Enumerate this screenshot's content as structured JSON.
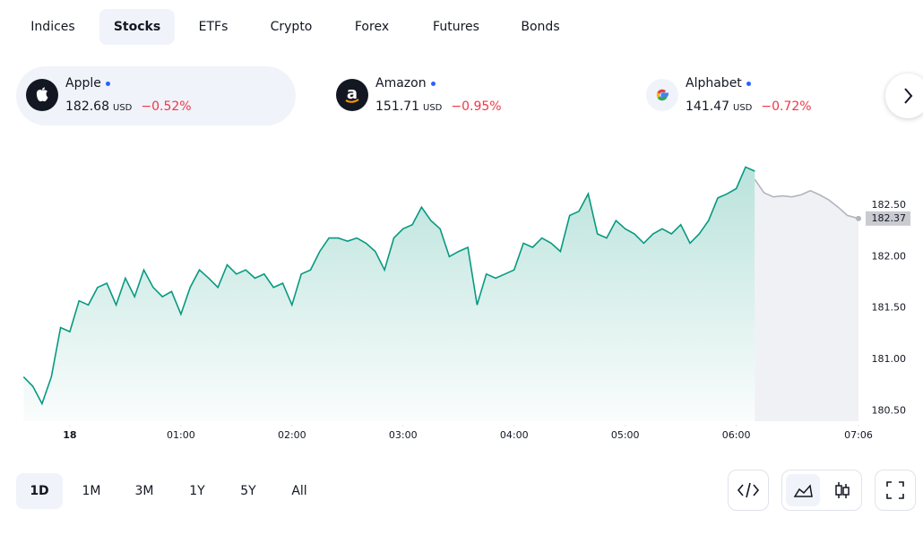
{
  "tabs": [
    "Indices",
    "Stocks",
    "ETFs",
    "Crypto",
    "Forex",
    "Futures",
    "Bonds"
  ],
  "active_tab": 1,
  "tickers": [
    {
      "name": "Apple",
      "price": 182.68,
      "currency": "USD",
      "change": "−0.52%"
    },
    {
      "name": "Amazon",
      "price": 151.71,
      "currency": "USD",
      "change": "−0.95%"
    },
    {
      "name": "Alphabet",
      "price": 141.47,
      "currency": "USD",
      "change": "−0.72%"
    }
  ],
  "active_ticker": 0,
  "chart_data": {
    "type": "line",
    "area": true,
    "xlim": [
      -29,
      426
    ],
    "ylim": [
      180.4,
      183.1
    ],
    "xticks": [
      {
        "value": 0,
        "label": "18"
      },
      {
        "value": 60,
        "label": "01:00"
      },
      {
        "value": 120,
        "label": "02:00"
      },
      {
        "value": 180,
        "label": "03:00"
      },
      {
        "value": 240,
        "label": "04:00"
      },
      {
        "value": 300,
        "label": "05:00"
      },
      {
        "value": 360,
        "label": "06:00"
      },
      {
        "value": 426,
        "label": "07:06"
      }
    ],
    "yticks": [
      {
        "value": 180.5,
        "label": "180.50"
      },
      {
        "value": 181,
        "label": "181.00"
      },
      {
        "value": 181.5,
        "label": "181.50"
      },
      {
        "value": 182,
        "label": "182.00"
      },
      {
        "value": 182.5,
        "label": "182.50"
      }
    ],
    "current_price": 182.37,
    "series": [
      {
        "color": "#089981",
        "x": [
          -25,
          -20,
          -15,
          -10,
          -5,
          0,
          5,
          10,
          15,
          20,
          25,
          30,
          35,
          40,
          45,
          50,
          55,
          60,
          65,
          70,
          75,
          80,
          85,
          90,
          95,
          100,
          105,
          110,
          115,
          120,
          125,
          130,
          135,
          140,
          145,
          150,
          155,
          160,
          165,
          170,
          175,
          180,
          185,
          190,
          195,
          200,
          205,
          210,
          215,
          220,
          225,
          230,
          235,
          240,
          245,
          250,
          255,
          260,
          265,
          270,
          275,
          280,
          285,
          290,
          295,
          300,
          305,
          310,
          315,
          320,
          325,
          330,
          335,
          340,
          345,
          350,
          355,
          360,
          365,
          370
        ],
        "values": [
          180.83,
          180.74,
          180.57,
          180.83,
          181.31,
          181.27,
          181.57,
          181.53,
          181.7,
          181.74,
          181.53,
          181.79,
          181.61,
          181.87,
          181.7,
          181.61,
          181.66,
          181.44,
          181.7,
          181.87,
          181.79,
          181.7,
          181.92,
          181.83,
          181.87,
          181.79,
          181.83,
          181.7,
          181.74,
          181.53,
          181.83,
          181.87,
          182.05,
          182.18,
          182.18,
          182.15,
          182.18,
          182.13,
          182.05,
          181.87,
          182.18,
          182.27,
          182.31,
          182.48,
          182.35,
          182.27,
          182,
          182.05,
          182.09,
          181.53,
          181.83,
          181.79,
          181.83,
          181.87,
          182.13,
          182.09,
          182.18,
          182.13,
          182.05,
          182.4,
          182.44,
          182.61,
          182.22,
          182.18,
          182.35,
          182.27,
          182.22,
          182.13,
          182.22,
          182.27,
          182.22,
          182.31,
          182.13,
          182.22,
          182.35,
          182.57,
          182.61,
          182.66,
          182.87,
          182.83
        ]
      },
      {
        "color": "#b2b5be",
        "x": [
          370,
          375,
          380,
          385,
          390,
          395,
          400,
          405,
          410,
          415,
          420,
          426
        ],
        "values": [
          182.75,
          182.62,
          182.58,
          182.59,
          182.58,
          182.6,
          182.64,
          182.6,
          182.55,
          182.48,
          182.4,
          182.37
        ]
      }
    ]
  },
  "ranges": [
    "1D",
    "1M",
    "3M",
    "1Y",
    "5Y",
    "All"
  ],
  "active_range": 0
}
